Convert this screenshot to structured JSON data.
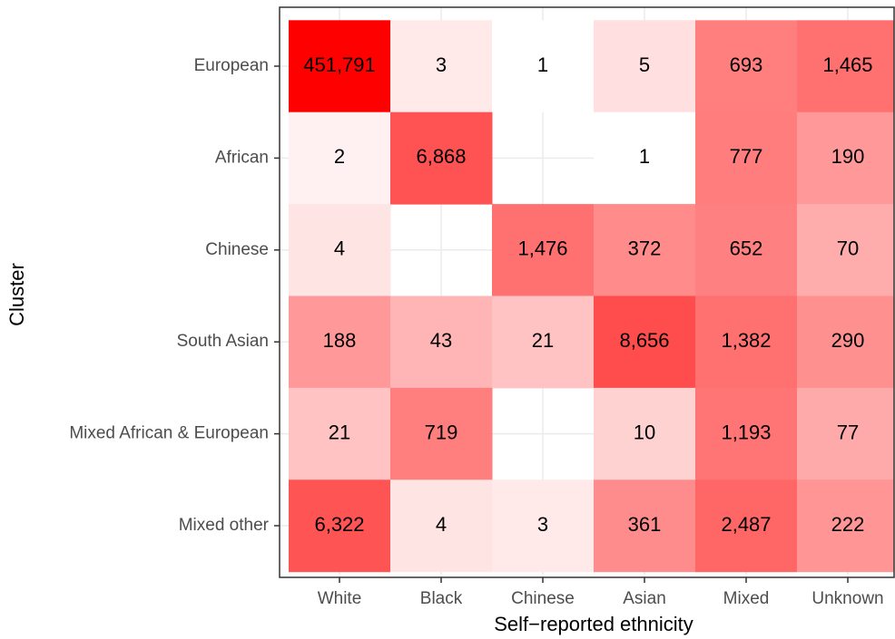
{
  "chart_data": {
    "type": "heatmap",
    "x_label": "Self−reported ethnicity",
    "y_label": "Cluster",
    "x": [
      "White",
      "Black",
      "Chinese",
      "Asian",
      "Mixed",
      "Unknown"
    ],
    "y": [
      "European",
      "African",
      "Chinese",
      "South Asian",
      "Mixed African & European",
      "Mixed other"
    ],
    "values": [
      [
        451791,
        3,
        1,
        5,
        693,
        1465
      ],
      [
        2,
        6868,
        null,
        1,
        777,
        190
      ],
      [
        4,
        null,
        1476,
        372,
        652,
        70
      ],
      [
        188,
        43,
        21,
        8656,
        1382,
        290
      ],
      [
        21,
        719,
        null,
        10,
        1193,
        77
      ],
      [
        6322,
        4,
        3,
        361,
        2487,
        222
      ]
    ],
    "value_labels": [
      [
        "451,791",
        "3",
        "1",
        "5",
        "693",
        "1,465"
      ],
      [
        "2",
        "6,868",
        null,
        "1",
        "777",
        "190"
      ],
      [
        "4",
        null,
        "1,476",
        "372",
        "652",
        "70"
      ],
      [
        "188",
        "43",
        "21",
        "8,656",
        "1,382",
        "290"
      ],
      [
        "21",
        "719",
        null,
        "10",
        "1,193",
        "77"
      ],
      [
        "6,322",
        "4",
        "3",
        "361",
        "2,487",
        "222"
      ]
    ],
    "color_scale": "log",
    "colors": [
      "#ffffff",
      "#ff0000"
    ],
    "grid": true
  }
}
